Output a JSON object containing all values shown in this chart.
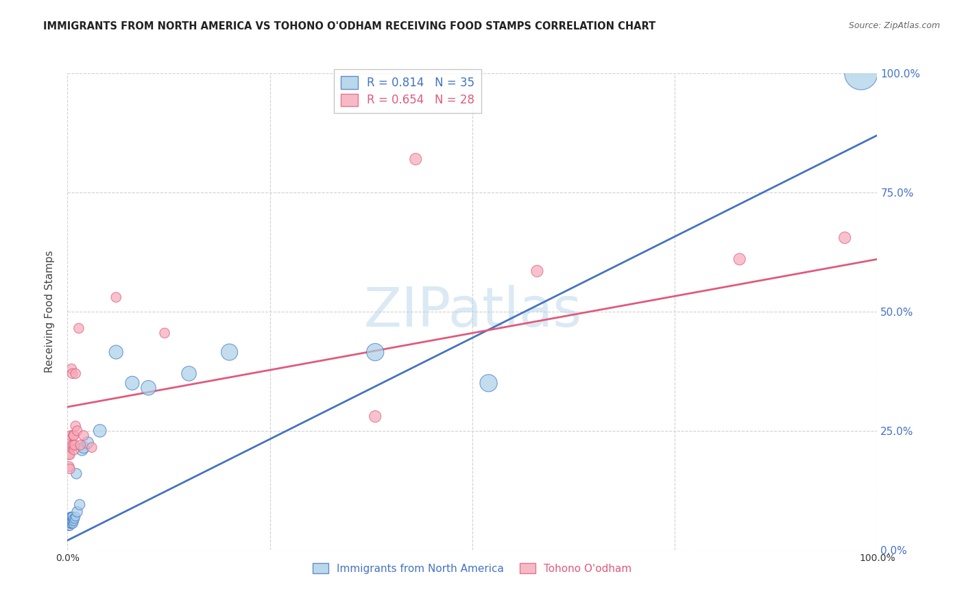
{
  "title": "IMMIGRANTS FROM NORTH AMERICA VS TOHONO O'ODHAM RECEIVING FOOD STAMPS CORRELATION CHART",
  "source": "Source: ZipAtlas.com",
  "ylabel": "Receiving Food Stamps",
  "xlabel": "",
  "xlim": [
    0,
    1
  ],
  "ylim": [
    0,
    1
  ],
  "xtick_labels": [
    "0.0%",
    "100.0%"
  ],
  "ytick_labels": [
    "0.0%",
    "25.0%",
    "50.0%",
    "75.0%",
    "100.0%"
  ],
  "ytick_positions": [
    0,
    0.25,
    0.5,
    0.75,
    1.0
  ],
  "watermark": "ZIPatlas",
  "blue_R": 0.814,
  "blue_N": 35,
  "pink_R": 0.654,
  "pink_N": 28,
  "blue_label": "Immigrants from North America",
  "pink_label": "Tohono O'odham",
  "blue_color": "#a8cfe8",
  "pink_color": "#f4a9b8",
  "blue_line_color": "#4472c4",
  "pink_line_color": "#e05a7a",
  "grid_color": "#d0d0d0",
  "title_color": "#222222",
  "axis_label_color": "#444444",
  "tick_color_right": "#4472c4",
  "background_color": "#ffffff",
  "watermark_color": "#b8d4ea",
  "blue_points_x": [
    0.001,
    0.002,
    0.002,
    0.002,
    0.003,
    0.003,
    0.003,
    0.004,
    0.004,
    0.004,
    0.005,
    0.005,
    0.005,
    0.006,
    0.006,
    0.007,
    0.007,
    0.008,
    0.009,
    0.01,
    0.011,
    0.012,
    0.015,
    0.018,
    0.02,
    0.025,
    0.04,
    0.06,
    0.08,
    0.1,
    0.15,
    0.2,
    0.38,
    0.52,
    0.98
  ],
  "blue_points_y": [
    0.05,
    0.055,
    0.06,
    0.065,
    0.05,
    0.06,
    0.065,
    0.055,
    0.06,
    0.07,
    0.055,
    0.06,
    0.07,
    0.06,
    0.07,
    0.055,
    0.065,
    0.06,
    0.065,
    0.07,
    0.16,
    0.08,
    0.095,
    0.21,
    0.215,
    0.225,
    0.25,
    0.415,
    0.35,
    0.34,
    0.37,
    0.415,
    0.415,
    0.35,
    1.0
  ],
  "blue_sizes": [
    15,
    15,
    15,
    15,
    15,
    15,
    15,
    15,
    15,
    15,
    15,
    15,
    15,
    15,
    15,
    15,
    15,
    15,
    15,
    15,
    20,
    20,
    20,
    25,
    25,
    25,
    30,
    35,
    35,
    40,
    40,
    50,
    55,
    55,
    200
  ],
  "pink_points_x": [
    0.002,
    0.002,
    0.003,
    0.003,
    0.004,
    0.004,
    0.005,
    0.005,
    0.006,
    0.007,
    0.007,
    0.008,
    0.008,
    0.009,
    0.01,
    0.01,
    0.012,
    0.014,
    0.016,
    0.02,
    0.03,
    0.06,
    0.12,
    0.38,
    0.43,
    0.58,
    0.83,
    0.96
  ],
  "pink_points_y": [
    0.175,
    0.2,
    0.17,
    0.2,
    0.24,
    0.215,
    0.22,
    0.38,
    0.37,
    0.22,
    0.24,
    0.21,
    0.24,
    0.22,
    0.26,
    0.37,
    0.25,
    0.465,
    0.22,
    0.24,
    0.215,
    0.53,
    0.455,
    0.28,
    0.82,
    0.585,
    0.61,
    0.655
  ],
  "pink_sizes": [
    18,
    18,
    18,
    18,
    18,
    18,
    18,
    18,
    18,
    18,
    18,
    18,
    18,
    18,
    18,
    18,
    18,
    18,
    18,
    18,
    18,
    18,
    18,
    25,
    25,
    25,
    25,
    25
  ],
  "blue_line_y_start": 0.02,
  "blue_line_y_end": 0.87,
  "pink_line_y_start": 0.3,
  "pink_line_y_end": 0.61
}
